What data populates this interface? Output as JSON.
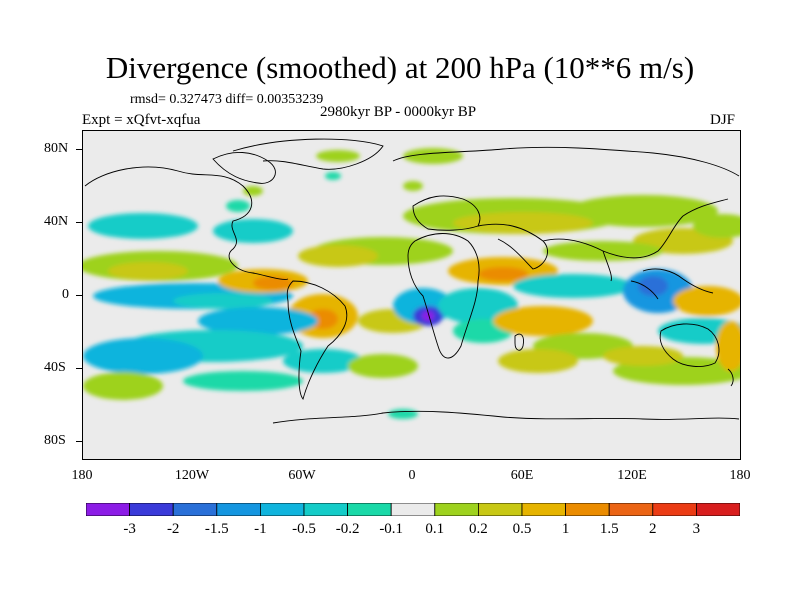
{
  "title": "Divergence (smoothed) at 200 hPa (10**6 m/s)",
  "stats": "rmsd= 0.327473 diff= 0.00353239",
  "experiment": "Expt = xQfvt-xqfua",
  "period": "2980kyr BP - 0000kyr BP",
  "season": "DJF",
  "y_ticks": [
    "80N",
    "40N",
    "0",
    "40S",
    "80S"
  ],
  "x_ticks": [
    "180",
    "120W",
    "60W",
    "0",
    "60E",
    "120E",
    "180"
  ],
  "colorbar": {
    "labels": [
      "-3",
      "-2",
      "-1.5",
      "-1",
      "-0.5",
      "-0.2",
      "-0.1",
      "0.1",
      "0.2",
      "0.5",
      "1",
      "1.5",
      "2",
      "3"
    ],
    "colors": [
      "#8c1ce6",
      "#3a3ad9",
      "#2a70d8",
      "#1496e0",
      "#10b4dd",
      "#14ccc8",
      "#1ad9a8",
      "#ebebeb",
      "#9ed21e",
      "#c8c814",
      "#e6b400",
      "#eb8c00",
      "#eb6414",
      "#eb3c14",
      "#d81e1e"
    ]
  },
  "map_colors": {
    "background": "#ebebeb",
    "coast": "#000000"
  }
}
